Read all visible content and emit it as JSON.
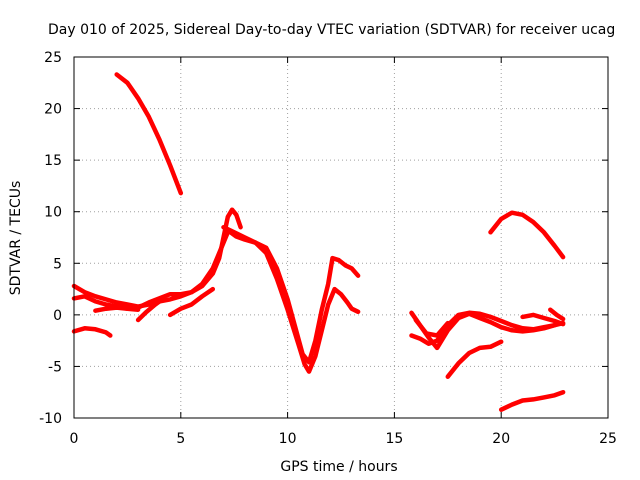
{
  "chart_data": {
    "type": "line",
    "title": "Day 010 of 2025, Sidereal Day-to-day VTEC variation (SDTVAR) for receiver ucag",
    "xlabel": "GPS time / hours",
    "ylabel": "SDTVAR / TECUs",
    "xlim": [
      0,
      25
    ],
    "ylim": [
      -10,
      25
    ],
    "xticks": [
      0,
      5,
      10,
      15,
      20,
      25
    ],
    "yticks": [
      -10,
      -5,
      0,
      5,
      10,
      15,
      20,
      25
    ],
    "xtick_labels": [
      "0",
      "5",
      "10",
      "15",
      "20",
      "25"
    ],
    "ytick_labels": [
      "-10",
      "-5",
      "0",
      "5",
      "10",
      "15",
      "20",
      "25"
    ],
    "grid": true,
    "color": "#ff0000",
    "series": [
      {
        "name": "s1",
        "x": [
          2.0,
          2.5,
          3.0,
          3.5,
          4.0,
          4.5,
          5.0
        ],
        "y": [
          23.3,
          22.5,
          21.0,
          19.2,
          17.0,
          14.5,
          11.8
        ]
      },
      {
        "name": "s2",
        "x": [
          0.0,
          0.5,
          1.0,
          1.5,
          2.0,
          2.5,
          3.0,
          3.5,
          4.0,
          4.5,
          5.0,
          5.5,
          6.0,
          6.5,
          6.8,
          7.0,
          7.2,
          7.4,
          7.6,
          7.8
        ],
        "y": [
          2.8,
          2.2,
          1.8,
          1.5,
          1.2,
          1.0,
          0.8,
          1.0,
          1.3,
          1.5,
          1.8,
          2.2,
          2.8,
          4.0,
          5.5,
          7.5,
          9.5,
          10.2,
          9.7,
          8.5
        ]
      },
      {
        "name": "s3",
        "x": [
          0.0,
          0.5,
          1.0,
          1.5,
          2.0,
          2.5,
          3.0,
          3.5,
          4.0,
          4.5,
          5.0,
          5.5,
          6.0,
          6.5,
          6.9,
          7.2
        ],
        "y": [
          1.6,
          1.8,
          1.3,
          1.0,
          0.8,
          0.6,
          0.7,
          1.2,
          1.6,
          2.0,
          2.0,
          2.2,
          3.0,
          4.5,
          6.5,
          8.0
        ]
      },
      {
        "name": "s4",
        "x": [
          0.0,
          0.5,
          1.0,
          1.5,
          1.7
        ],
        "y": [
          -1.6,
          -1.3,
          -1.4,
          -1.7,
          -2.0
        ]
      },
      {
        "name": "s5",
        "x": [
          1.0,
          1.5,
          2.0,
          2.5,
          3.0
        ],
        "y": [
          0.4,
          0.6,
          0.7,
          0.6,
          0.5
        ]
      },
      {
        "name": "s6",
        "x": [
          4.5,
          5.0,
          5.5,
          6.0,
          6.5
        ],
        "y": [
          0.0,
          0.6,
          1.0,
          1.8,
          2.5
        ]
      },
      {
        "name": "s7",
        "x": [
          3.0,
          3.4,
          3.8,
          4.2
        ],
        "y": [
          -0.5,
          0.3,
          1.0,
          1.6
        ]
      },
      {
        "name": "s8",
        "x": [
          7.0,
          7.5,
          8.0,
          8.5,
          9.0,
          9.5,
          10.0,
          10.5,
          10.8,
          11.0,
          11.3,
          11.6,
          11.9,
          12.2,
          12.5,
          12.8,
          13.0,
          13.3
        ],
        "y": [
          8.5,
          8.0,
          7.5,
          7.0,
          6.0,
          3.5,
          0.5,
          -2.8,
          -4.8,
          -5.5,
          -4.0,
          -1.5,
          1.0,
          2.5,
          2.0,
          1.2,
          0.6,
          0.3
        ]
      },
      {
        "name": "s9",
        "x": [
          7.2,
          7.6,
          8.0,
          8.5,
          9.0,
          9.5,
          10.0,
          10.4,
          10.7,
          11.0,
          11.3,
          11.6,
          11.9,
          12.1,
          12.4,
          12.7,
          13.0,
          13.3
        ],
        "y": [
          8.2,
          7.6,
          7.3,
          7.0,
          6.5,
          4.5,
          1.5,
          -1.5,
          -3.8,
          -4.6,
          -2.5,
          0.5,
          3.0,
          5.5,
          5.3,
          4.8,
          4.5,
          3.8
        ]
      },
      {
        "name": "s10",
        "x": [
          15.8,
          16.2,
          16.6,
          17.0,
          17.5,
          18.0,
          18.5,
          19.0,
          19.5,
          20.0,
          20.5,
          21.0,
          21.5,
          22.0,
          22.5,
          22.9
        ],
        "y": [
          -2.0,
          -2.3,
          -2.8,
          -2.5,
          -1.0,
          0.0,
          0.2,
          0.1,
          -0.2,
          -0.6,
          -1.0,
          -1.3,
          -1.4,
          -1.2,
          -1.0,
          -0.8
        ]
      },
      {
        "name": "s11",
        "x": [
          15.8,
          16.2,
          16.6,
          17.0,
          17.5,
          18.0,
          18.5,
          19.0,
          19.5,
          20.0,
          20.5,
          21.0,
          21.5,
          22.0,
          22.5
        ],
        "y": [
          0.2,
          -1.0,
          -2.2,
          -3.2,
          -1.5,
          -0.3,
          0.1,
          -0.3,
          -0.7,
          -1.2,
          -1.5,
          -1.6,
          -1.5,
          -1.3,
          -1.0
        ]
      },
      {
        "name": "s12",
        "x": [
          16.0,
          16.5,
          17.0,
          17.5
        ],
        "y": [
          -0.5,
          -1.8,
          -2.0,
          -0.8
        ]
      },
      {
        "name": "s13",
        "x": [
          17.5,
          18.0,
          18.5,
          19.0,
          19.5,
          20.0
        ],
        "y": [
          -6.0,
          -4.7,
          -3.7,
          -3.2,
          -3.1,
          -2.6
        ]
      },
      {
        "name": "s14",
        "x": [
          19.5,
          20.0,
          20.5,
          21.0,
          21.5,
          22.0,
          22.5,
          22.9
        ],
        "y": [
          8.0,
          9.3,
          9.9,
          9.7,
          9.0,
          8.0,
          6.7,
          5.6
        ]
      },
      {
        "name": "s15",
        "x": [
          20.0,
          20.5,
          21.0,
          21.5,
          22.0,
          22.5,
          22.9
        ],
        "y": [
          -9.2,
          -8.7,
          -8.3,
          -8.2,
          -8.0,
          -7.8,
          -7.5
        ]
      },
      {
        "name": "s16",
        "x": [
          21.0,
          21.5,
          22.0,
          22.5,
          22.9
        ],
        "y": [
          -0.2,
          0.0,
          -0.3,
          -0.6,
          -0.9
        ]
      },
      {
        "name": "s17",
        "x": [
          22.3,
          22.6,
          22.9
        ],
        "y": [
          0.5,
          0.0,
          -0.4
        ]
      }
    ]
  }
}
